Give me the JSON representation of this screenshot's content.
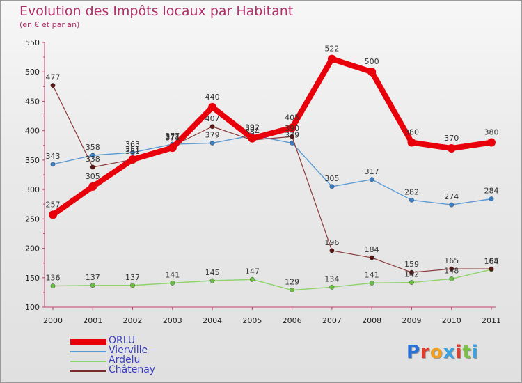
{
  "title": "Evolution des Impôts locaux par Habitant",
  "subtitle": "(en € et par an)",
  "logo_text": "Proxiti",
  "chart_data": {
    "type": "line",
    "title": "Evolution des Impôts locaux par Habitant",
    "subtitle": "(en € et par an)",
    "xlabel": "",
    "ylabel": "",
    "x": [
      "2000",
      "2001",
      "2002",
      "2003",
      "2004",
      "2005",
      "2006",
      "2007",
      "2008",
      "2009",
      "2010",
      "2011"
    ],
    "ylim": [
      100,
      550
    ],
    "yticks": [
      "100",
      "150",
      "200",
      "250",
      "300",
      "350",
      "400",
      "450",
      "500",
      "550"
    ],
    "grid": false,
    "legend_placement": "bottom-left",
    "series": [
      {
        "name": "ORLU",
        "color": "#e8000b",
        "values": [
          257,
          305,
          351,
          371,
          440,
          387,
          405,
          522,
          500,
          380,
          370,
          380
        ]
      },
      {
        "name": "Vierville",
        "color": "#5b9bd5",
        "values": [
          343,
          358,
          363,
          377,
          379,
          392,
          379,
          305,
          317,
          282,
          274,
          284
        ]
      },
      {
        "name": "Ardelu",
        "color": "#8ed36a",
        "values": [
          136,
          137,
          137,
          141,
          145,
          147,
          129,
          134,
          141,
          142,
          148,
          164
        ]
      },
      {
        "name": "Châtenay",
        "color": "#7b2a2a",
        "values": [
          477,
          338,
          351,
          374,
          407,
          384,
          390,
          196,
          184,
          159,
          165,
          165
        ]
      }
    ]
  }
}
